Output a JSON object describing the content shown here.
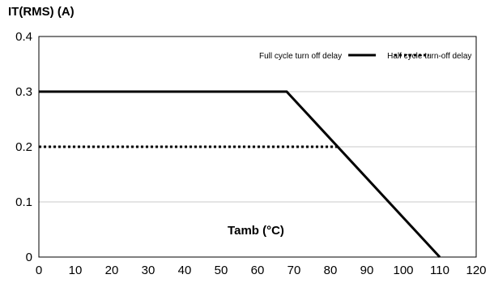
{
  "chart_data": {
    "type": "line",
    "ylabel": "IT(RMS)  (A)",
    "xlabel": "Tamb (°C)",
    "xlim": [
      0,
      120
    ],
    "ylim": [
      0,
      0.4
    ],
    "x_ticks": [
      "0",
      "10",
      "20",
      "30",
      "40",
      "50",
      "60",
      "70",
      "80",
      "90",
      "100",
      "110",
      "120"
    ],
    "y_ticks": [
      "0",
      "0.1",
      "0.2",
      "0.3",
      "0.4"
    ],
    "grid": "horizontal",
    "legend_position": "top-right",
    "series": [
      {
        "name": "Full cycle turn off delay",
        "style": "solid",
        "color": "#000000",
        "points": [
          [
            0,
            0.3
          ],
          [
            68,
            0.3
          ],
          [
            110,
            0.0
          ]
        ]
      },
      {
        "name": "Half cycle turn-off delay",
        "style": "dotted",
        "color": "#000000",
        "points": [
          [
            0,
            0.2
          ],
          [
            82,
            0.2
          ]
        ]
      }
    ]
  }
}
